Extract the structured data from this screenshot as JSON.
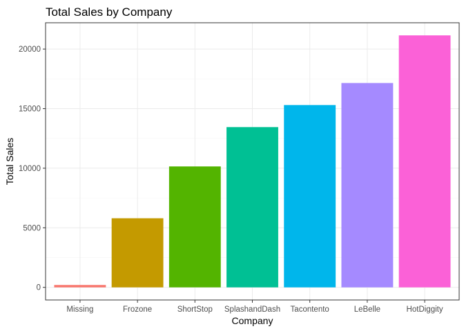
{
  "chart_data": {
    "type": "bar",
    "title": "Total Sales by Company",
    "xlabel": "Company",
    "ylabel": "Total Sales",
    "categories": [
      "Missing",
      "Frozone",
      "ShortStop",
      "SplashandDash",
      "Tacontento",
      "LeBelle",
      "HotDiggity"
    ],
    "values": [
      200,
      5800,
      10150,
      13450,
      15300,
      17150,
      21150
    ],
    "colors": [
      "#F8766D",
      "#C49A00",
      "#53B400",
      "#00C094",
      "#00B6EB",
      "#A58AFF",
      "#FB61D7"
    ],
    "y_ticks": [
      0,
      5000,
      10000,
      15000,
      20000
    ],
    "y_tick_labels": [
      "0",
      "5000",
      "10000",
      "15000",
      "20000"
    ],
    "ylim": [
      -1057.5,
      22207.5
    ],
    "grid": true,
    "legend": "none"
  }
}
